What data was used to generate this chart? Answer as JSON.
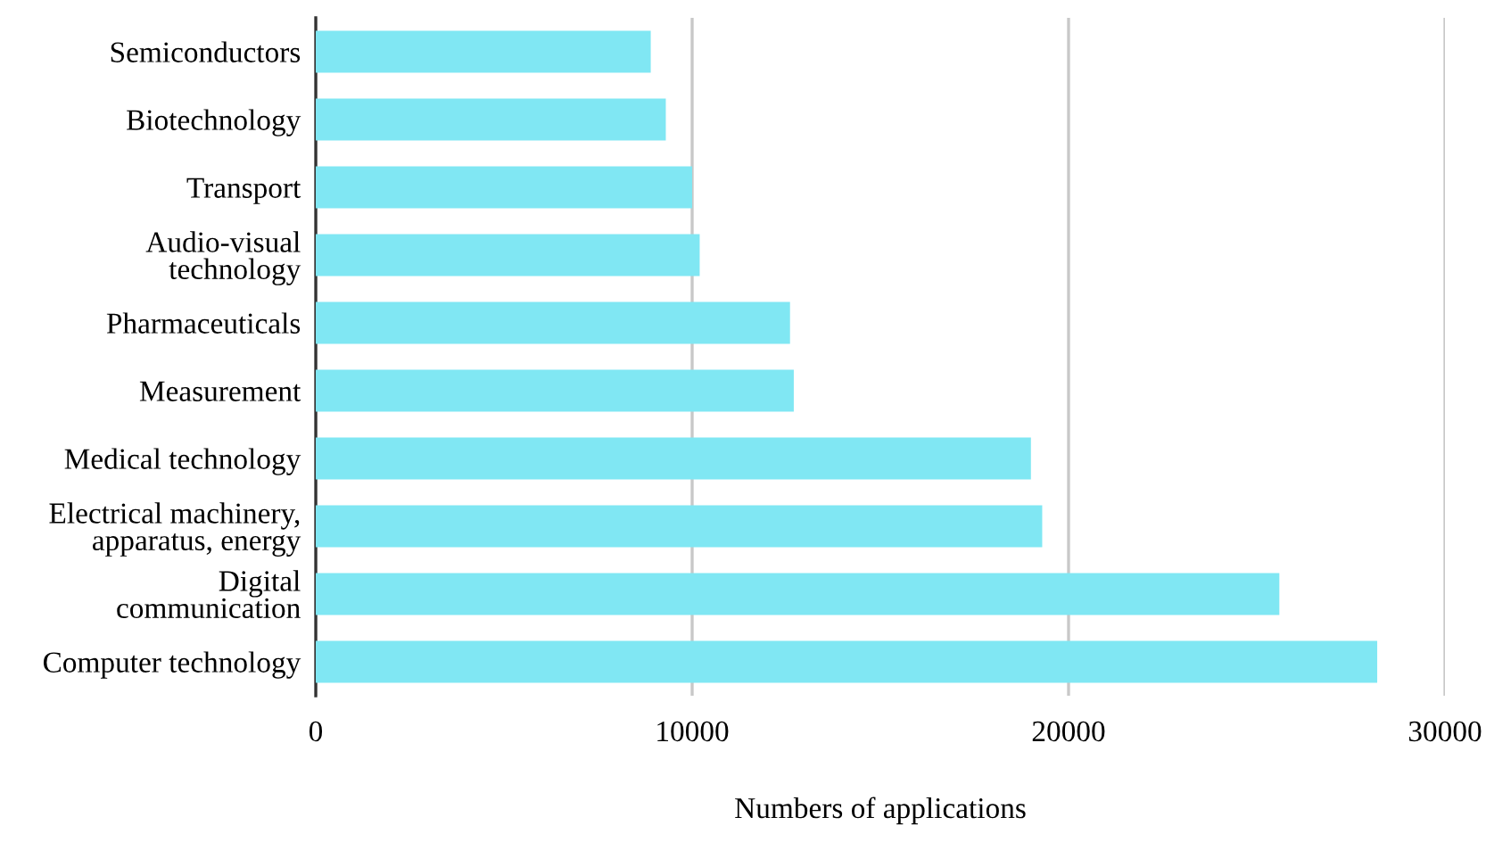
{
  "chart_data": {
    "type": "bar",
    "orientation": "horizontal",
    "xlabel": "Numbers of applications",
    "categories": [
      "Semiconductors",
      "Biotechnology",
      "Transport",
      "Audio-visual\ntechnology",
      "Pharmaceuticals",
      "Measurement",
      "Medical technology",
      "Electrical machinery,\napparatus, energy",
      "Digital\ncommunication",
      "Computer technology"
    ],
    "series": [
      {
        "color": "#80e7f3",
        "values": [
          8900,
          9300,
          10000,
          10200,
          12600,
          12700,
          19000,
          19300,
          25600,
          28200
        ]
      }
    ],
    "xlim": [
      0,
      30000
    ],
    "xticks": [
      0,
      10000,
      20000,
      30000
    ],
    "grid": "x",
    "legend": false
  }
}
